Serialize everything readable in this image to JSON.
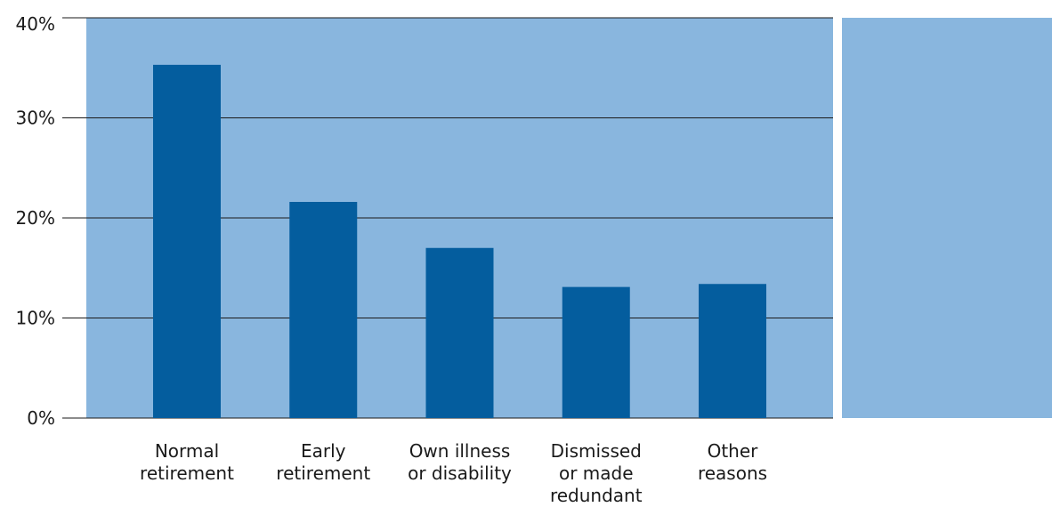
{
  "chart_data": {
    "type": "bar",
    "categories": [
      [
        "Normal",
        "retirement"
      ],
      [
        "Early",
        "retirement"
      ],
      [
        "Own illness",
        "or disability"
      ],
      [
        "Dismissed",
        "or made",
        "redundant"
      ],
      [
        "Other",
        "reasons"
      ]
    ],
    "values": [
      35.3,
      21.6,
      17.0,
      13.1,
      13.4
    ],
    "ylim": [
      0,
      40
    ],
    "yticks": [
      0,
      10,
      20,
      30,
      40
    ],
    "ytick_labels": [
      "0%",
      "10%",
      "20%",
      "30%",
      "40%"
    ],
    "title": "",
    "xlabel": "",
    "ylabel": "",
    "grid": true,
    "colors": {
      "bar": "#045D9E",
      "plot_background": "#89B6DE",
      "gridline": "#1a1a1a"
    }
  }
}
